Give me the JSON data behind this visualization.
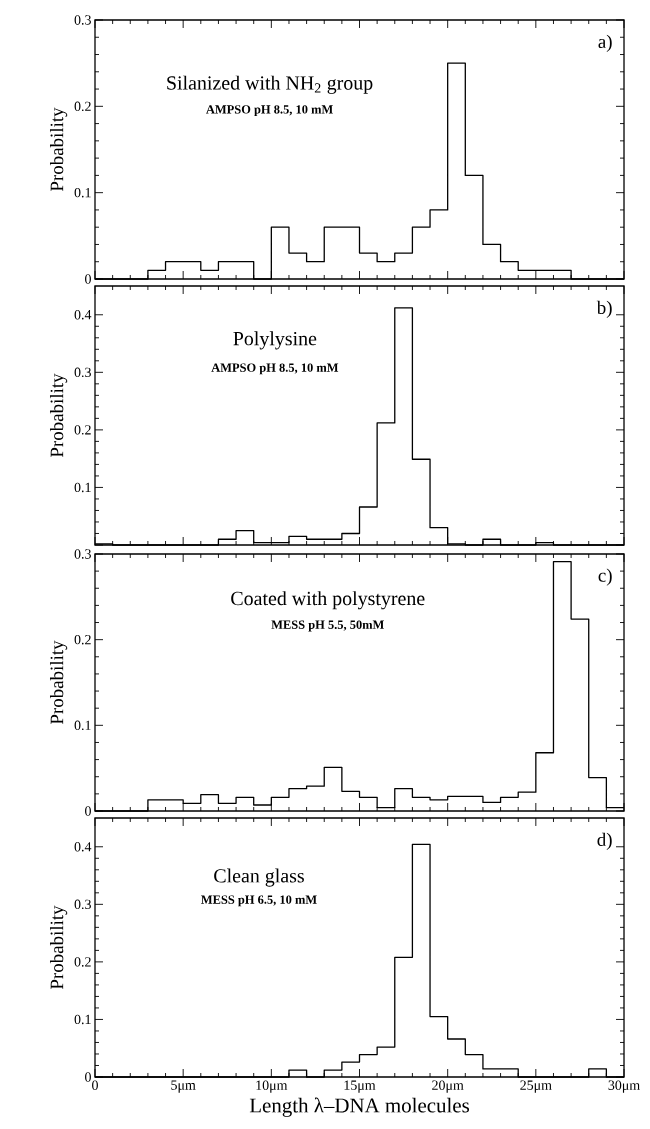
{
  "chart_data": [
    {
      "type": "histogram",
      "title": "Silanized with NH$_{2}$ group",
      "subtitle": "AMPSO pH 8.5, 10 mM",
      "annotations": [
        "a)"
      ],
      "ylabel": "Probability",
      "color": "#000000",
      "bins": [
        0,
        1,
        2,
        3,
        4,
        5,
        6,
        7,
        8,
        9,
        10,
        11,
        12,
        13,
        14,
        15,
        16,
        17,
        18,
        19,
        20,
        21,
        22,
        23,
        24,
        25,
        26,
        27,
        28,
        29,
        30
      ],
      "values": [
        0,
        0,
        0,
        0.01,
        0.02,
        0.02,
        0.01,
        0.02,
        0.02,
        0,
        0.06,
        0.03,
        0.02,
        0.06,
        0.06,
        0.03,
        0.02,
        0.03,
        0.06,
        0.08,
        0.25,
        0.12,
        0.04,
        0.02,
        0.01,
        0.01,
        0.01,
        0,
        0,
        0
      ],
      "xlim": [
        0,
        30
      ],
      "xticks": [
        0,
        5,
        10,
        15,
        20,
        25,
        30
      ],
      "ylim": [
        0,
        0.3
      ],
      "yticks": [
        0,
        0.1,
        0.2,
        0.3
      ],
      "tick_labels": "y"
    },
    {
      "type": "histogram",
      "title": "Polylysine",
      "subtitle": "AMPSO pH 8.5, 10 mM",
      "annotations": [
        "b)"
      ],
      "ylabel": "Probability",
      "color": "#000000",
      "bins": [
        0,
        1,
        2,
        3,
        4,
        5,
        6,
        7,
        8,
        9,
        10,
        11,
        12,
        13,
        14,
        15,
        16,
        17,
        18,
        19,
        20,
        21,
        22,
        23,
        24,
        25,
        26,
        27,
        28,
        29,
        30
      ],
      "values": [
        0.002,
        0,
        0,
        0,
        0,
        0,
        0,
        0.01,
        0.025,
        0.004,
        0.004,
        0.015,
        0.01,
        0.01,
        0.02,
        0.066,
        0.212,
        0.412,
        0.149,
        0.03,
        0.002,
        0,
        0.01,
        0,
        0,
        0.004,
        0,
        0,
        0,
        0
      ],
      "xlim": [
        0,
        30
      ],
      "xticks": [
        0,
        5,
        10,
        15,
        20,
        25,
        30
      ],
      "ylim": [
        0,
        0.45
      ],
      "yticks": [
        {
          "value": 0,
          "label": null
        },
        0.1,
        0.2,
        0.3,
        0.4
      ],
      "tick_labels": "y"
    },
    {
      "type": "histogram",
      "title": "Coated with polystyrene",
      "subtitle": "MESS  pH 5.5, 50mM",
      "annotations": [
        "c)"
      ],
      "ylabel": "Probability",
      "color": "#000000",
      "bins": [
        0,
        1,
        2,
        3,
        4,
        5,
        6,
        7,
        8,
        9,
        10,
        11,
        12,
        13,
        14,
        15,
        16,
        17,
        18,
        19,
        20,
        21,
        22,
        23,
        24,
        25,
        26,
        27,
        28,
        29,
        30
      ],
      "values": [
        0,
        0,
        0,
        0.013,
        0.013,
        0.009,
        0.019,
        0.009,
        0.016,
        0.007,
        0.016,
        0.026,
        0.029,
        0.051,
        0.023,
        0.016,
        0.004,
        0.026,
        0.016,
        0.013,
        0.017,
        0.017,
        0.01,
        0.016,
        0.022,
        0.068,
        0.291,
        0.224,
        0.039,
        0.004
      ],
      "xlim": [
        0,
        30
      ],
      "xticks": [
        0,
        5,
        10,
        15,
        20,
        25,
        30
      ],
      "ylim": [
        0,
        0.3
      ],
      "yticks": [
        0,
        0.1,
        0.2,
        0.3
      ],
      "tick_labels": "y"
    },
    {
      "type": "histogram",
      "title": "Clean glass",
      "subtitle": "MESS pH 6.5, 10 mM",
      "annotations": [
        "d)"
      ],
      "ylabel": "Probability",
      "xlabel": "Length λ–DNA molecules",
      "color": "#000000",
      "bins": [
        0,
        1,
        2,
        3,
        4,
        5,
        6,
        7,
        8,
        9,
        10,
        11,
        12,
        13,
        14,
        15,
        16,
        17,
        18,
        19,
        20,
        21,
        22,
        23,
        24,
        25,
        26,
        27,
        28,
        29,
        30
      ],
      "values": [
        0,
        0,
        0,
        0,
        0,
        0,
        0,
        0,
        0,
        0,
        0,
        0.012,
        0,
        0.012,
        0.026,
        0.039,
        0.052,
        0.208,
        0.404,
        0.105,
        0.066,
        0.039,
        0.014,
        0.014,
        0,
        0,
        0,
        0,
        0.014,
        0
      ],
      "xlim": [
        0,
        30
      ],
      "xticks": [
        0,
        {
          "value": 5,
          "label": "5μm"
        },
        {
          "value": 10,
          "label": "10μm"
        },
        {
          "value": 15,
          "label": "15μm"
        },
        {
          "value": 20,
          "label": "20μm"
        },
        {
          "value": 25,
          "label": "25μm"
        },
        {
          "value": 30,
          "label": "30μm"
        }
      ],
      "ylim": [
        0,
        0.45
      ],
      "yticks": [
        0,
        0.1,
        0.2,
        0.3,
        0.4
      ]
    }
  ]
}
